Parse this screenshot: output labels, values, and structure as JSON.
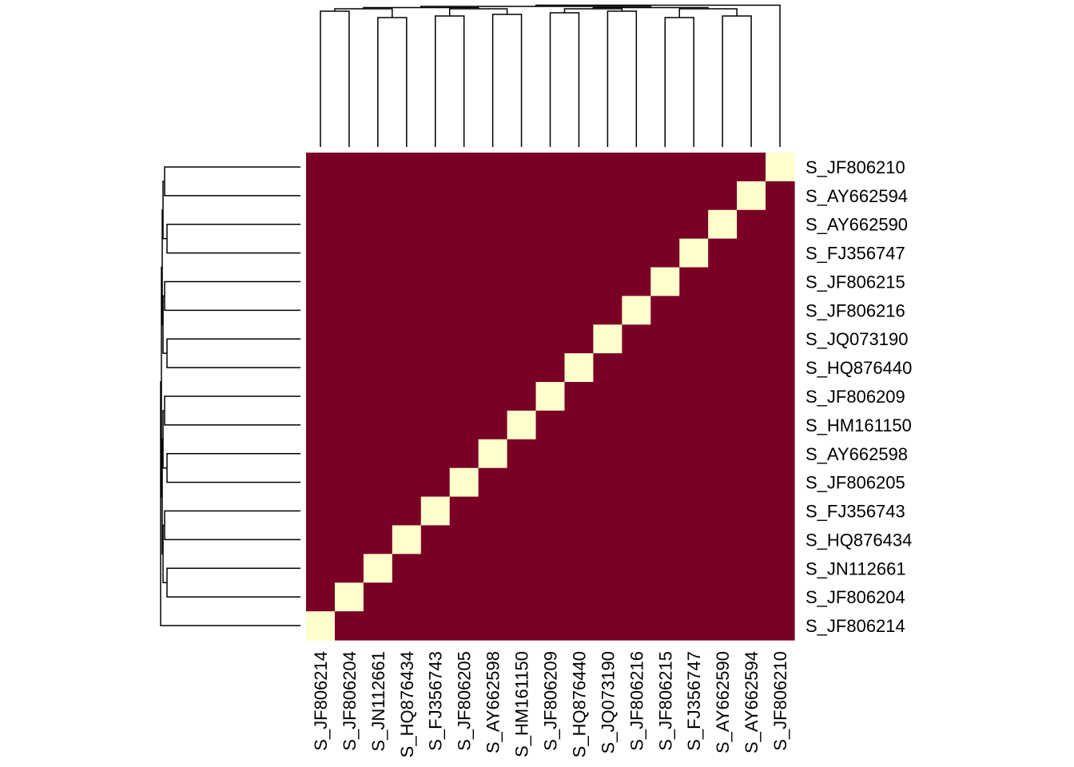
{
  "colors": {
    "low": "#7A0026",
    "high": "#FFFFCC",
    "background": "#FFFFFF",
    "dendrogram": "#000000"
  },
  "chart_data": {
    "type": "heatmap",
    "title": "",
    "xlabel": "",
    "ylabel": "",
    "row_labels_top_to_bottom": [
      "S_JF806210",
      "S_AY662594",
      "S_AY662590",
      "S_FJ356747",
      "S_JF806215",
      "S_JF806216",
      "S_JQ073190",
      "S_HQ876440",
      "S_JF806209",
      "S_HM161150",
      "S_AY662598",
      "S_JF806205",
      "S_FJ356743",
      "S_HQ876434",
      "S_JN112661",
      "S_JF806204",
      "S_JF806214"
    ],
    "column_labels_left_to_right": [
      "S_JF806214",
      "S_JF806204",
      "S_JN112661",
      "S_HQ876434",
      "S_FJ356743",
      "S_JF806205",
      "S_AY662598",
      "S_HM161150",
      "S_JF806209",
      "S_HQ876440",
      "S_JQ073190",
      "S_JF806216",
      "S_JF806215",
      "S_FJ356747",
      "S_AY662590",
      "S_AY662594",
      "S_JF806210"
    ],
    "cell_rule": "high where row label equals column label (diagonal), low elsewhere",
    "row_dendrogram": true,
    "column_dendrogram": true,
    "legend": "none",
    "grid": false
  }
}
